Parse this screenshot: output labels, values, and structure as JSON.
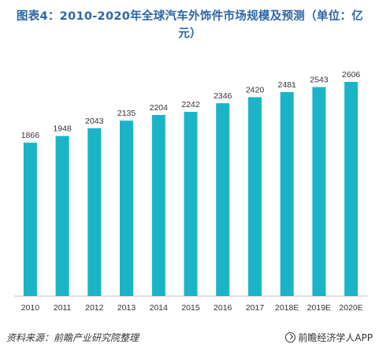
{
  "chart_data": {
    "type": "bar",
    "title": "图表4：2010-2020年全球汽车外饰件市场规模及预测（单位：亿元）",
    "categories": [
      "2010",
      "2011",
      "2012",
      "2013",
      "2014",
      "2015",
      "2016",
      "2017",
      "2018E",
      "2019E",
      "2020E"
    ],
    "values": [
      1866,
      1948,
      2043,
      2135,
      2204,
      2242,
      2346,
      2420,
      2481,
      2543,
      2606
    ],
    "data_labels": [
      "1866",
      "1948",
      "2043",
      "2135",
      "2204",
      "2242",
      "2346",
      "2420",
      "2481",
      "2543",
      "2606"
    ],
    "xlabel": "",
    "ylabel": "",
    "ylim": [
      0,
      2606
    ],
    "grid": false,
    "legend": "none",
    "bar_color": "#1bb4c6"
  },
  "footer": {
    "source": "资料来源：前瞻产业研究院整理",
    "brand": "前瞻经济学人APP"
  }
}
